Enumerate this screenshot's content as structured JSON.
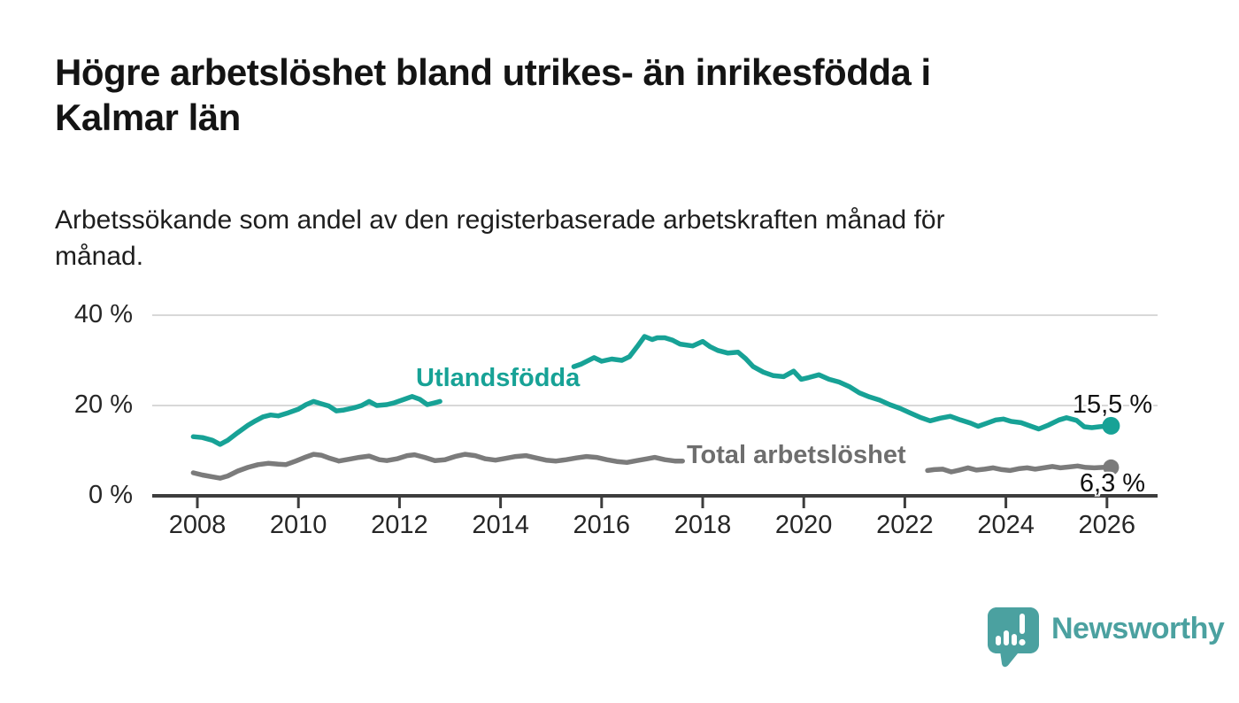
{
  "header": {
    "title_lines": [
      "Högre arbetslöshet bland utrikes- än inrikesfödda i",
      "Kalmar län"
    ],
    "subtitle_lines": [
      "Arbetssökande som andel av den registerbaserade arbetskraften månad för",
      "månad."
    ]
  },
  "chart_data": {
    "type": "line",
    "title": "Högre arbetslöshet bland utrikes- än inrikesfödda i Kalmar län",
    "subtitle": "Arbetssökande som andel av den registerbaserade arbetskraften månad för månad.",
    "xlabel": "",
    "ylabel": "",
    "xlim": [
      2007.1,
      2027.0
    ],
    "ylim": [
      0,
      40
    ],
    "grid": "horizontal",
    "grid_color": "#d8d8d8",
    "axis_color": "#3d3d3d",
    "x_ticks": [
      2008,
      2010,
      2012,
      2014,
      2016,
      2018,
      2020,
      2022,
      2024,
      2026
    ],
    "x_tick_labels": [
      "2008",
      "2010",
      "2012",
      "2014",
      "2016",
      "2018",
      "2020",
      "2022",
      "2024",
      "2026"
    ],
    "y_ticks": [
      0,
      20,
      40
    ],
    "y_tick_labels": [
      "0 %",
      "20 %",
      "40 %"
    ],
    "series": [
      {
        "id": "utlandsfodda",
        "name": "Utlandsfödda",
        "color": "#17a296",
        "end_label": "15,5 %",
        "end_value": 15.5,
        "segments": [
          [
            [
              2007.92,
              13.1
            ],
            [
              2008.1,
              12.9
            ],
            [
              2008.3,
              12.3
            ],
            [
              2008.45,
              11.4
            ],
            [
              2008.6,
              12.3
            ],
            [
              2008.8,
              14.0
            ],
            [
              2009.0,
              15.6
            ],
            [
              2009.15,
              16.6
            ],
            [
              2009.3,
              17.5
            ],
            [
              2009.45,
              17.9
            ],
            [
              2009.6,
              17.7
            ],
            [
              2009.8,
              18.4
            ],
            [
              2010.0,
              19.2
            ],
            [
              2010.15,
              20.2
            ],
            [
              2010.3,
              20.9
            ],
            [
              2010.45,
              20.4
            ],
            [
              2010.6,
              19.9
            ],
            [
              2010.75,
              18.8
            ],
            [
              2010.9,
              19.0
            ],
            [
              2011.1,
              19.5
            ],
            [
              2011.25,
              20.0
            ],
            [
              2011.4,
              20.9
            ],
            [
              2011.55,
              20.0
            ],
            [
              2011.75,
              20.2
            ],
            [
              2011.9,
              20.6
            ],
            [
              2012.1,
              21.4
            ],
            [
              2012.25,
              22.0
            ],
            [
              2012.4,
              21.4
            ],
            [
              2012.55,
              20.2
            ],
            [
              2012.7,
              20.6
            ],
            [
              2012.8,
              20.9
            ]
          ],
          [
            [
              2015.45,
              28.6
            ],
            [
              2015.6,
              29.2
            ],
            [
              2015.85,
              30.6
            ],
            [
              2016.0,
              29.8
            ],
            [
              2016.2,
              30.3
            ],
            [
              2016.4,
              30.0
            ],
            [
              2016.55,
              30.8
            ],
            [
              2016.7,
              33.0
            ],
            [
              2016.85,
              35.3
            ],
            [
              2017.0,
              34.6
            ],
            [
              2017.1,
              35.0
            ],
            [
              2017.25,
              35.0
            ],
            [
              2017.4,
              34.5
            ],
            [
              2017.55,
              33.6
            ],
            [
              2017.8,
              33.2
            ],
            [
              2018.0,
              34.2
            ],
            [
              2018.15,
              33.0
            ],
            [
              2018.3,
              32.2
            ],
            [
              2018.5,
              31.6
            ],
            [
              2018.7,
              31.8
            ],
            [
              2018.85,
              30.4
            ],
            [
              2019.0,
              28.6
            ],
            [
              2019.2,
              27.4
            ],
            [
              2019.4,
              26.6
            ],
            [
              2019.6,
              26.4
            ],
            [
              2019.8,
              27.6
            ],
            [
              2019.95,
              25.8
            ],
            [
              2020.1,
              26.2
            ],
            [
              2020.3,
              26.8
            ],
            [
              2020.5,
              25.8
            ],
            [
              2020.7,
              25.2
            ],
            [
              2020.9,
              24.2
            ],
            [
              2021.1,
              22.8
            ],
            [
              2021.3,
              21.9
            ],
            [
              2021.5,
              21.2
            ],
            [
              2021.7,
              20.2
            ],
            [
              2021.9,
              19.4
            ],
            [
              2022.1,
              18.4
            ],
            [
              2022.3,
              17.4
            ],
            [
              2022.5,
              16.6
            ],
            [
              2022.7,
              17.2
            ],
            [
              2022.9,
              17.6
            ],
            [
              2023.1,
              16.8
            ],
            [
              2023.3,
              16.1
            ],
            [
              2023.45,
              15.4
            ],
            [
              2023.6,
              16.0
            ],
            [
              2023.8,
              16.8
            ],
            [
              2023.95,
              17.0
            ],
            [
              2024.1,
              16.5
            ],
            [
              2024.3,
              16.2
            ],
            [
              2024.5,
              15.4
            ],
            [
              2024.65,
              14.8
            ],
            [
              2024.85,
              15.7
            ],
            [
              2025.05,
              16.8
            ],
            [
              2025.2,
              17.3
            ],
            [
              2025.4,
              16.7
            ],
            [
              2025.55,
              15.3
            ],
            [
              2025.7,
              15.1
            ],
            [
              2025.85,
              15.3
            ],
            [
              2026.08,
              15.5
            ]
          ]
        ]
      },
      {
        "id": "total-arbetsloshet",
        "name": "Total arbetslöshet",
        "color": "#7b7b7b",
        "label_color": "#6e6e6e",
        "end_label": "6,3 %",
        "end_value": 6.3,
        "segments": [
          [
            [
              2007.92,
              5.1
            ],
            [
              2008.1,
              4.6
            ],
            [
              2008.3,
              4.2
            ],
            [
              2008.45,
              3.9
            ],
            [
              2008.6,
              4.4
            ],
            [
              2008.8,
              5.5
            ],
            [
              2009.0,
              6.3
            ],
            [
              2009.2,
              6.9
            ],
            [
              2009.4,
              7.2
            ],
            [
              2009.6,
              7.0
            ],
            [
              2009.75,
              6.9
            ],
            [
              2009.95,
              7.7
            ],
            [
              2010.15,
              8.6
            ],
            [
              2010.3,
              9.2
            ],
            [
              2010.45,
              9.0
            ],
            [
              2010.6,
              8.4
            ],
            [
              2010.8,
              7.7
            ],
            [
              2011.0,
              8.1
            ],
            [
              2011.2,
              8.5
            ],
            [
              2011.4,
              8.8
            ],
            [
              2011.6,
              8.0
            ],
            [
              2011.75,
              7.8
            ],
            [
              2011.95,
              8.2
            ],
            [
              2012.15,
              8.9
            ],
            [
              2012.3,
              9.1
            ],
            [
              2012.5,
              8.5
            ],
            [
              2012.7,
              7.8
            ],
            [
              2012.9,
              8.0
            ],
            [
              2013.1,
              8.7
            ],
            [
              2013.3,
              9.2
            ],
            [
              2013.5,
              8.9
            ],
            [
              2013.7,
              8.2
            ],
            [
              2013.9,
              7.9
            ],
            [
              2014.1,
              8.3
            ],
            [
              2014.3,
              8.7
            ],
            [
              2014.5,
              8.9
            ],
            [
              2014.7,
              8.4
            ],
            [
              2014.9,
              7.9
            ],
            [
              2015.1,
              7.7
            ],
            [
              2015.3,
              8.0
            ],
            [
              2015.5,
              8.4
            ],
            [
              2015.7,
              8.7
            ],
            [
              2015.9,
              8.5
            ],
            [
              2016.1,
              8.0
            ],
            [
              2016.3,
              7.6
            ],
            [
              2016.5,
              7.4
            ],
            [
              2016.7,
              7.8
            ],
            [
              2016.9,
              8.2
            ],
            [
              2017.05,
              8.5
            ],
            [
              2017.25,
              8.0
            ],
            [
              2017.45,
              7.7
            ],
            [
              2017.6,
              7.7
            ]
          ],
          [
            [
              2022.45,
              5.6
            ],
            [
              2022.58,
              5.8
            ],
            [
              2022.75,
              5.9
            ],
            [
              2022.92,
              5.3
            ],
            [
              2023.08,
              5.7
            ],
            [
              2023.25,
              6.2
            ],
            [
              2023.42,
              5.7
            ],
            [
              2023.58,
              5.9
            ],
            [
              2023.75,
              6.2
            ],
            [
              2023.92,
              5.8
            ],
            [
              2024.08,
              5.6
            ],
            [
              2024.25,
              6.0
            ],
            [
              2024.42,
              6.2
            ],
            [
              2024.58,
              5.9
            ],
            [
              2024.75,
              6.2
            ],
            [
              2024.92,
              6.5
            ],
            [
              2025.08,
              6.2
            ],
            [
              2025.25,
              6.4
            ],
            [
              2025.42,
              6.6
            ],
            [
              2025.58,
              6.3
            ],
            [
              2025.75,
              6.2
            ],
            [
              2025.92,
              6.3
            ],
            [
              2026.08,
              6.3
            ]
          ]
        ]
      }
    ]
  },
  "footer": {
    "brand": "Newsworthy",
    "brand_color": "#4ba1a0"
  }
}
